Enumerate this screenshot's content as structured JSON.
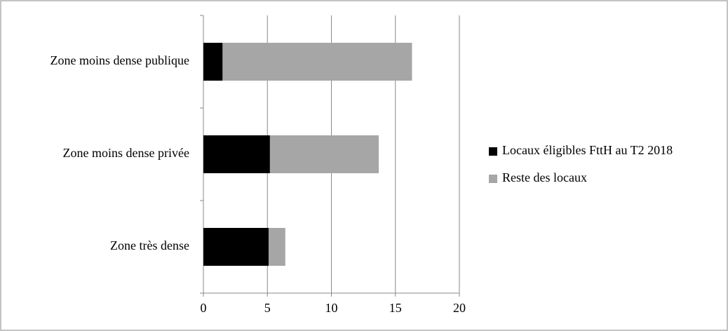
{
  "chart_data": {
    "type": "stacked-barh",
    "categories": [
      "Zone moins dense publique",
      "Zone moins dense privée",
      "Zone très dense"
    ],
    "series": [
      {
        "name": "Locaux éligibles FttH au T2 2018",
        "color": "#000000",
        "values": [
          1.5,
          5.2,
          5.1
        ]
      },
      {
        "name": "Reste des locaux",
        "color": "#a6a6a6",
        "values": [
          14.8,
          8.5,
          1.3
        ]
      }
    ],
    "xlim": [
      0,
      20
    ],
    "xticks": [
      0,
      5,
      10,
      15,
      20
    ],
    "grid": true,
    "legend": "right"
  }
}
